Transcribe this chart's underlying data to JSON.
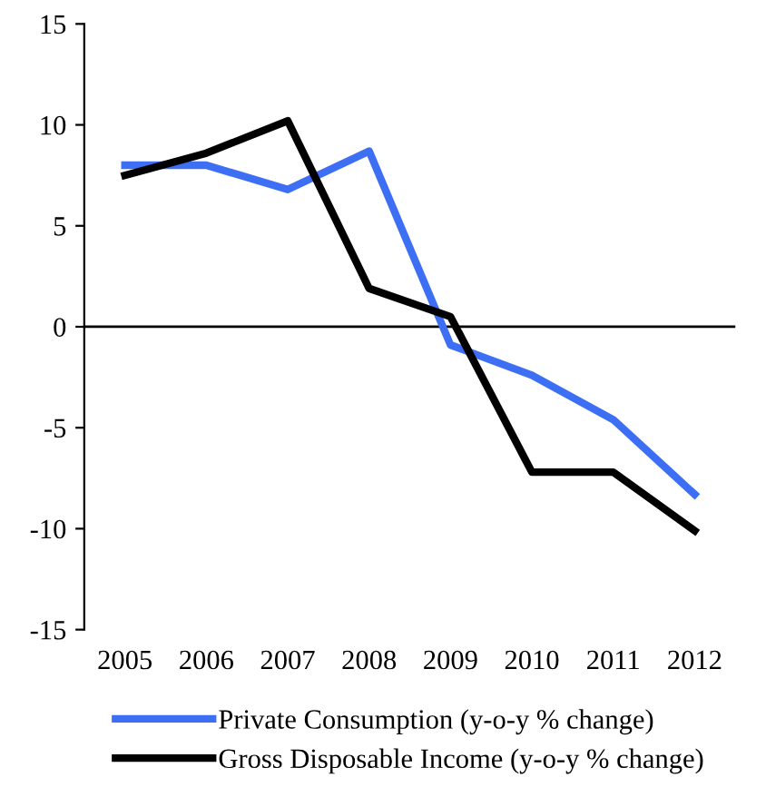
{
  "chart_data": {
    "type": "line",
    "categories": [
      "2005",
      "2006",
      "2007",
      "2008",
      "2009",
      "2010",
      "2011",
      "2012"
    ],
    "series": [
      {
        "name": "Private Consumption (y-o-y % change)",
        "color": "#3d6ff5",
        "values": [
          8.0,
          8.0,
          6.8,
          8.7,
          -0.9,
          -2.4,
          -4.6,
          -8.3
        ]
      },
      {
        "name": "Gross Disposable Income (y-o-y % change)",
        "color": "#000000",
        "values": [
          7.5,
          8.6,
          10.2,
          1.9,
          0.5,
          -7.2,
          -7.2,
          -10.1
        ]
      }
    ],
    "ylim": [
      -15,
      15
    ],
    "yticks": [
      -15,
      -10,
      -5,
      0,
      5,
      10,
      15
    ],
    "grid": false,
    "legend": "bottom",
    "marker": "none",
    "line_style": "solid",
    "ref_lines": [
      {
        "axis": "y",
        "value": 0,
        "color": "#000000"
      }
    ]
  }
}
